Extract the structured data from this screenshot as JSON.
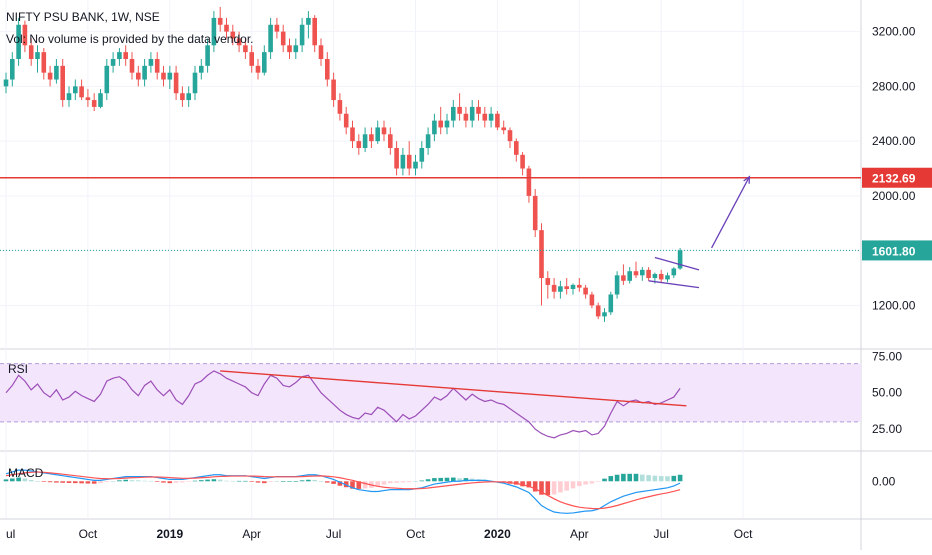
{
  "header": {
    "title": "NIFTY PSU BANK, 1W, NSE",
    "volume_note": "Vol: No volume is provided by the data vendor."
  },
  "colors": {
    "up": "#26a69a",
    "down": "#ef5350",
    "resistance": "#e53935",
    "current_price": "#26a69a",
    "rsi_line": "#9c4fb8",
    "rsi_band": "#f3e5fb",
    "rsi_trend": "#e53935",
    "flag": "#6a40b8",
    "macd_line": "#2196f3",
    "signal_line": "#ff5252",
    "axis_text": "#131722",
    "grid": "#f0f3fa"
  },
  "chart_data": [
    {
      "type": "candlestick",
      "title": "NIFTY PSU BANK, 1W, NSE",
      "ylim": [
        940,
        3380
      ],
      "y_ticks": [
        1200,
        1600,
        2000,
        2400,
        2800,
        3200
      ],
      "y_tick_labels": [
        "1200.00",
        "",
        "2000.00",
        "2400.00",
        "2800.00",
        "3200.00"
      ],
      "x_tick_labels": [
        {
          "label": "ul",
          "week": 0,
          "bold": false
        },
        {
          "label": "Oct",
          "week": 13,
          "bold": false
        },
        {
          "label": "2019",
          "week": 26,
          "bold": true
        },
        {
          "label": "Apr",
          "week": 39,
          "bold": false
        },
        {
          "label": "Jul",
          "week": 52,
          "bold": false
        },
        {
          "label": "Oct",
          "week": 65,
          "bold": false
        },
        {
          "label": "2020",
          "week": 78,
          "bold": true
        },
        {
          "label": "Apr",
          "week": 91,
          "bold": false
        },
        {
          "label": "Jul",
          "week": 104,
          "bold": false
        },
        {
          "label": "Oct",
          "week": 117,
          "bold": false
        }
      ],
      "levels": [
        {
          "name": "resistance",
          "value": 2132.69,
          "label": "2132.69"
        },
        {
          "name": "last-price",
          "value": 1601.8,
          "label": "1601.80"
        }
      ],
      "annotations": [
        {
          "name": "flag-upper",
          "points": [
            [
              103,
              1550
            ],
            [
              110,
              1460
            ]
          ]
        },
        {
          "name": "flag-lower",
          "points": [
            [
              102,
              1380
            ],
            [
              110,
              1330
            ]
          ]
        },
        {
          "name": "projection-arrow",
          "points": [
            [
              112,
              1620
            ],
            [
              118,
              2140
            ]
          ]
        }
      ],
      "candles": [
        [
          2800,
          2900,
          2750,
          2850
        ],
        [
          2850,
          3050,
          2800,
          3000
        ],
        [
          3000,
          3300,
          2950,
          3250
        ],
        [
          3250,
          3280,
          3050,
          3100
        ],
        [
          3100,
          3150,
          2950,
          3000
        ],
        [
          3000,
          3100,
          2900,
          3050
        ],
        [
          3050,
          3080,
          2850,
          2900
        ],
        [
          2900,
          2950,
          2800,
          2850
        ],
        [
          2850,
          3000,
          2820,
          2950
        ],
        [
          2950,
          3000,
          2650,
          2700
        ],
        [
          2700,
          2800,
          2650,
          2750
        ],
        [
          2750,
          2850,
          2700,
          2800
        ],
        [
          2800,
          2850,
          2700,
          2720
        ],
        [
          2720,
          2780,
          2650,
          2700
        ],
        [
          2700,
          2750,
          2620,
          2650
        ],
        [
          2650,
          2780,
          2640,
          2750
        ],
        [
          2750,
          3000,
          2700,
          2950
        ],
        [
          2950,
          3050,
          2900,
          3000
        ],
        [
          3000,
          3080,
          2950,
          3050
        ],
        [
          3050,
          3100,
          2950,
          3000
        ],
        [
          3000,
          3050,
          2850,
          2900
        ],
        [
          2900,
          2950,
          2800,
          2850
        ],
        [
          2850,
          3000,
          2800,
          2950
        ],
        [
          2950,
          3050,
          2900,
          3000
        ],
        [
          3000,
          3050,
          2850,
          2900
        ],
        [
          2900,
          2950,
          2800,
          2850
        ],
        [
          2850,
          2950,
          2780,
          2900
        ],
        [
          2900,
          2950,
          2700,
          2750
        ],
        [
          2750,
          2800,
          2650,
          2700
        ],
        [
          2700,
          2800,
          2650,
          2750
        ],
        [
          2750,
          2950,
          2700,
          2900
        ],
        [
          2900,
          3000,
          2850,
          2950
        ],
        [
          2950,
          3150,
          2900,
          3100
        ],
        [
          3100,
          3350,
          3050,
          3300
        ],
        [
          3300,
          3380,
          3200,
          3250
        ],
        [
          3250,
          3300,
          3150,
          3200
        ],
        [
          3200,
          3250,
          3100,
          3150
        ],
        [
          3150,
          3200,
          3050,
          3100
        ],
        [
          3100,
          3150,
          3000,
          3050
        ],
        [
          3050,
          3100,
          2900,
          2950
        ],
        [
          2950,
          3000,
          2850,
          2900
        ],
        [
          2900,
          3100,
          2880,
          3050
        ],
        [
          3050,
          3300,
          3000,
          3250
        ],
        [
          3250,
          3300,
          3150,
          3200
        ],
        [
          3200,
          3250,
          3050,
          3100
        ],
        [
          3100,
          3150,
          3000,
          3050
        ],
        [
          3050,
          3150,
          3000,
          3100
        ],
        [
          3100,
          3300,
          3050,
          3250
        ],
        [
          3250,
          3350,
          3150,
          3300
        ],
        [
          3300,
          3320,
          3050,
          3100
        ],
        [
          3100,
          3150,
          2950,
          3000
        ],
        [
          3000,
          3050,
          2800,
          2850
        ],
        [
          2850,
          2900,
          2650,
          2700
        ],
        [
          2700,
          2750,
          2550,
          2600
        ],
        [
          2600,
          2650,
          2450,
          2500
        ],
        [
          2500,
          2550,
          2350,
          2400
        ],
        [
          2400,
          2450,
          2300,
          2350
        ],
        [
          2350,
          2500,
          2320,
          2450
        ],
        [
          2450,
          2500,
          2350,
          2400
        ],
        [
          2400,
          2550,
          2380,
          2500
        ],
        [
          2500,
          2550,
          2400,
          2450
        ],
        [
          2450,
          2500,
          2300,
          2350
        ],
        [
          2350,
          2400,
          2150,
          2200
        ],
        [
          2200,
          2350,
          2150,
          2300
        ],
        [
          2300,
          2400,
          2150,
          2200
        ],
        [
          2200,
          2300,
          2150,
          2250
        ],
        [
          2250,
          2400,
          2200,
          2350
        ],
        [
          2350,
          2500,
          2300,
          2450
        ],
        [
          2450,
          2600,
          2400,
          2550
        ],
        [
          2550,
          2650,
          2450,
          2500
        ],
        [
          2500,
          2600,
          2450,
          2550
        ],
        [
          2550,
          2700,
          2500,
          2650
        ],
        [
          2650,
          2750,
          2550,
          2600
        ],
        [
          2600,
          2650,
          2500,
          2550
        ],
        [
          2550,
          2700,
          2500,
          2650
        ],
        [
          2650,
          2700,
          2550,
          2600
        ],
        [
          2600,
          2650,
          2500,
          2550
        ],
        [
          2550,
          2650,
          2500,
          2600
        ],
        [
          2600,
          2620,
          2480,
          2500
        ],
        [
          2500,
          2550,
          2450,
          2480
        ],
        [
          2480,
          2500,
          2350,
          2400
        ],
        [
          2400,
          2420,
          2250,
          2300
        ],
        [
          2300,
          2320,
          2150,
          2200
        ],
        [
          2200,
          2220,
          1950,
          2000
        ],
        [
          2000,
          2050,
          1700,
          1750
        ],
        [
          1750,
          1800,
          1200,
          1400
        ],
        [
          1400,
          1450,
          1250,
          1350
        ],
        [
          1350,
          1400,
          1250,
          1300
        ],
        [
          1300,
          1380,
          1250,
          1340
        ],
        [
          1340,
          1400,
          1280,
          1320
        ],
        [
          1320,
          1360,
          1280,
          1350
        ],
        [
          1350,
          1400,
          1300,
          1330
        ],
        [
          1330,
          1350,
          1250,
          1280
        ],
        [
          1280,
          1300,
          1180,
          1200
        ],
        [
          1200,
          1220,
          1100,
          1120
        ],
        [
          1120,
          1180,
          1080,
          1150
        ],
        [
          1150,
          1300,
          1130,
          1280
        ],
        [
          1280,
          1450,
          1250,
          1420
        ],
        [
          1420,
          1500,
          1350,
          1380
        ],
        [
          1380,
          1480,
          1360,
          1450
        ],
        [
          1450,
          1520,
          1400,
          1420
        ],
        [
          1420,
          1480,
          1380,
          1460
        ],
        [
          1460,
          1480,
          1380,
          1400
        ],
        [
          1400,
          1440,
          1360,
          1430
        ],
        [
          1430,
          1460,
          1370,
          1390
        ],
        [
          1390,
          1440,
          1370,
          1420
        ],
        [
          1420,
          1480,
          1400,
          1470
        ],
        [
          1470,
          1620,
          1460,
          1601.8
        ]
      ]
    },
    {
      "type": "line",
      "name": "RSI",
      "ylim": [
        12,
        78
      ],
      "y_ticks": [
        25,
        50,
        75
      ],
      "y_tick_labels": [
        "25.00",
        "50.00",
        "75.00"
      ],
      "band": [
        30,
        70
      ],
      "trendline": [
        [
          34,
          65
        ],
        [
          108,
          41
        ]
      ],
      "values": [
        50,
        55,
        62,
        58,
        52,
        56,
        50,
        47,
        52,
        45,
        47,
        51,
        48,
        46,
        44,
        49,
        58,
        60,
        61,
        58,
        52,
        48,
        55,
        58,
        52,
        48,
        52,
        45,
        42,
        48,
        56,
        58,
        62,
        65,
        63,
        60,
        58,
        56,
        54,
        50,
        48,
        56,
        62,
        60,
        55,
        54,
        57,
        61,
        62,
        56,
        50,
        46,
        42,
        38,
        35,
        33,
        32,
        36,
        35,
        40,
        38,
        34,
        30,
        35,
        32,
        34,
        38,
        42,
        47,
        45,
        48,
        53,
        49,
        45,
        49,
        46,
        44,
        45,
        43,
        42,
        39,
        36,
        33,
        30,
        25,
        22,
        20,
        19,
        21,
        22,
        24,
        23,
        24,
        21,
        22,
        27,
        36,
        44,
        41,
        44,
        45,
        43,
        44,
        42,
        43,
        45,
        47,
        53
      ]
    },
    {
      "type": "line",
      "name": "MACD",
      "ylim": [
        -190,
        150
      ],
      "y_ticks": [
        0
      ],
      "y_tick_labels": [
        "0.00"
      ],
      "macd": [
        40,
        50,
        60,
        60,
        55,
        50,
        45,
        40,
        35,
        30,
        25,
        20,
        15,
        10,
        5,
        5,
        10,
        15,
        20,
        25,
        25,
        25,
        25,
        25,
        20,
        15,
        10,
        10,
        10,
        15,
        20,
        25,
        30,
        35,
        35,
        30,
        30,
        30,
        30,
        25,
        20,
        15,
        20,
        25,
        25,
        25,
        25,
        30,
        35,
        35,
        30,
        20,
        10,
        -5,
        -20,
        -35,
        -45,
        -50,
        -55,
        -55,
        -50,
        -45,
        -45,
        -45,
        -45,
        -40,
        -35,
        -25,
        -15,
        -10,
        -5,
        0,
        0,
        5,
        5,
        5,
        5,
        0,
        -5,
        -10,
        -20,
        -30,
        -45,
        -60,
        -95,
        -130,
        -150,
        -165,
        -170,
        -172,
        -170,
        -165,
        -160,
        -158,
        -150,
        -130,
        -110,
        -95,
        -80,
        -70,
        -60,
        -55,
        -50,
        -45,
        -40,
        -35,
        -25,
        -10
      ],
      "signal": [
        30,
        35,
        40,
        45,
        48,
        50,
        48,
        45,
        42,
        38,
        34,
        30,
        26,
        22,
        18,
        15,
        14,
        14,
        15,
        17,
        19,
        20,
        22,
        23,
        23,
        22,
        20,
        18,
        16,
        16,
        17,
        19,
        21,
        24,
        26,
        27,
        28,
        28,
        28,
        28,
        27,
        25,
        24,
        24,
        24,
        24,
        24,
        25,
        27,
        28,
        29,
        27,
        24,
        19,
        12,
        5,
        -4,
        -12,
        -20,
        -27,
        -32,
        -35,
        -37,
        -39,
        -40,
        -40,
        -39,
        -36,
        -32,
        -28,
        -24,
        -20,
        -16,
        -12,
        -9,
        -6,
        -4,
        -3,
        -3,
        -4,
        -7,
        -12,
        -18,
        -27,
        -40,
        -58,
        -76,
        -94,
        -110,
        -122,
        -132,
        -139,
        -143,
        -146,
        -147,
        -144,
        -138,
        -130,
        -120,
        -110,
        -100,
        -91,
        -83,
        -75,
        -68,
        -62,
        -54,
        -45
      ]
    }
  ]
}
